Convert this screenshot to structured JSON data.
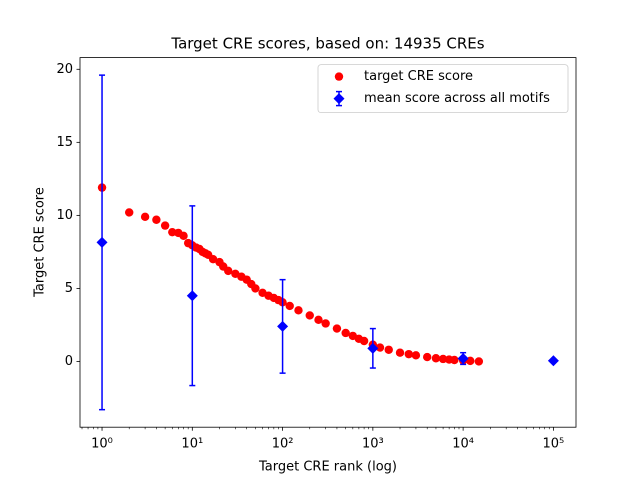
{
  "chart_data": {
    "type": "scatter",
    "title": "Target CRE scores, based on: 14935 CREs",
    "xlabel": "Target CRE rank (log)",
    "ylabel": "Target CRE score",
    "xscale": "log",
    "xlim": [
      0.57,
      178000
    ],
    "ylim": [
      -4.5,
      20.8
    ],
    "xticks": [
      {
        "value": 1,
        "label": "10⁰"
      },
      {
        "value": 10,
        "label": "10¹"
      },
      {
        "value": 100,
        "label": "10²"
      },
      {
        "value": 1000,
        "label": "10³"
      },
      {
        "value": 10000,
        "label": "10⁴"
      },
      {
        "value": 100000,
        "label": "10⁵"
      }
    ],
    "xminorticks": [
      0.6,
      0.7,
      0.8,
      0.9,
      2,
      3,
      4,
      5,
      6,
      7,
      8,
      9,
      20,
      30,
      40,
      50,
      60,
      70,
      80,
      90,
      200,
      300,
      400,
      500,
      600,
      700,
      800,
      900,
      2000,
      3000,
      4000,
      5000,
      6000,
      7000,
      8000,
      9000,
      20000,
      30000,
      40000,
      50000,
      60000,
      70000,
      80000,
      90000
    ],
    "yticks": [
      0,
      5,
      10,
      15,
      20
    ],
    "legend": "upper right",
    "series": [
      {
        "name": "target CRE score",
        "color": "#ff0000",
        "marker": "circle",
        "x": [
          1,
          2,
          3,
          4,
          5,
          6,
          7,
          8,
          9,
          10,
          11,
          12,
          13,
          14,
          15,
          17,
          20,
          22,
          25,
          30,
          35,
          40,
          45,
          50,
          60,
          70,
          80,
          90,
          100,
          120,
          150,
          200,
          250,
          300,
          400,
          500,
          600,
          700,
          800,
          1000,
          1200,
          1500,
          2000,
          2500,
          3000,
          4000,
          5000,
          6000,
          7000,
          8000,
          10000,
          12000,
          14935
        ],
        "values": [
          11.9,
          10.2,
          9.9,
          9.7,
          9.3,
          8.85,
          8.8,
          8.6,
          8.1,
          7.95,
          7.8,
          7.7,
          7.5,
          7.4,
          7.3,
          7.0,
          6.8,
          6.5,
          6.2,
          6.0,
          5.8,
          5.6,
          5.3,
          5.0,
          4.7,
          4.5,
          4.35,
          4.2,
          4.05,
          3.8,
          3.5,
          3.15,
          2.85,
          2.6,
          2.25,
          1.95,
          1.75,
          1.55,
          1.4,
          1.15,
          0.95,
          0.8,
          0.6,
          0.5,
          0.42,
          0.3,
          0.22,
          0.17,
          0.13,
          0.1,
          0.07,
          0.04,
          0.0
        ]
      },
      {
        "name": "mean score across all motifs",
        "color": "#0000ff",
        "marker": "diamond",
        "x": [
          1,
          10,
          100,
          1000,
          10000,
          100000
        ],
        "values": [
          8.15,
          4.5,
          2.4,
          0.9,
          0.2,
          0.05
        ],
        "errors": [
          11.45,
          6.15,
          3.2,
          1.35,
          0.4,
          0
        ]
      }
    ]
  }
}
